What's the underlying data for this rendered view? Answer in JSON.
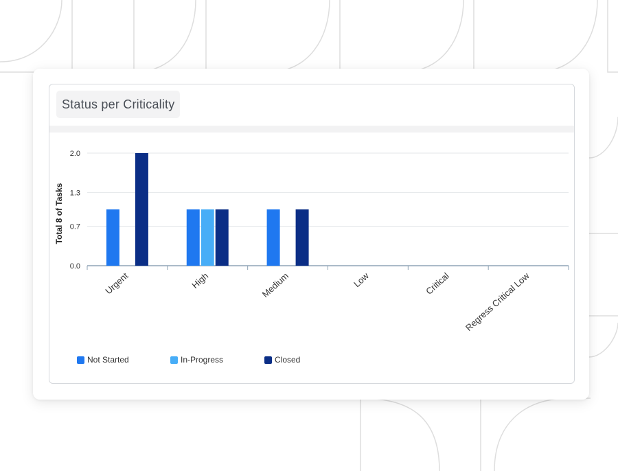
{
  "widget": {
    "title": "Status per Criticality"
  },
  "colors": {
    "not_started": "#1f78f0",
    "in_progress": "#47adf7",
    "closed": "#0b2e86",
    "grid": "#e3e6ea",
    "axis": "#8fa3b5",
    "pattern": "#dedede"
  },
  "chart_data": {
    "type": "bar",
    "title": "Status per Criticality",
    "xlabel": "",
    "ylabel": "Total 8 of Tasks",
    "ylim": [
      0,
      2
    ],
    "yticks": [
      "2.0",
      "1.3",
      "0.7",
      "0.0"
    ],
    "categories": [
      "Urgent",
      "High",
      "Medium",
      "Low",
      "Critical",
      "Regress Critical Low"
    ],
    "series": [
      {
        "name": "Not Started",
        "color_key": "not_started",
        "values": [
          1,
          1,
          1,
          0,
          0,
          0
        ]
      },
      {
        "name": "In-Progress",
        "color_key": "in_progress",
        "values": [
          0,
          1,
          0,
          0,
          0,
          0
        ]
      },
      {
        "name": "Closed",
        "color_key": "closed",
        "values": [
          2,
          1,
          1,
          0,
          0,
          0
        ]
      }
    ],
    "legend_position": "bottom-left",
    "grid": true
  }
}
